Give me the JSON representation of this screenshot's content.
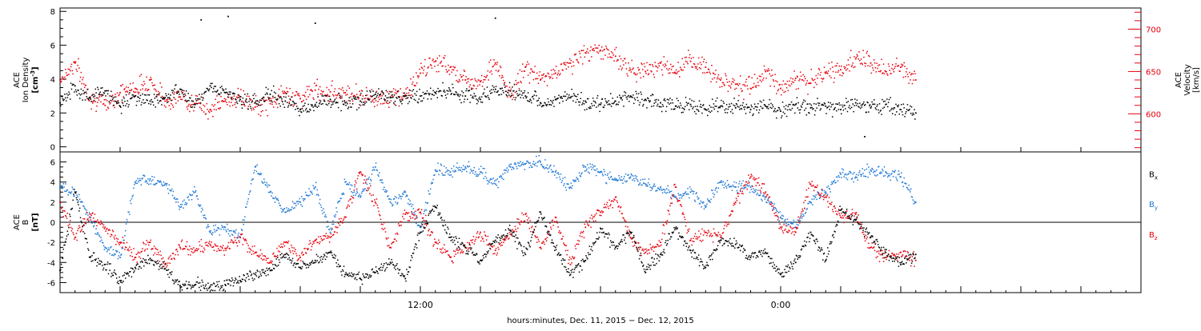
{
  "chart_data": [
    {
      "type": "scatter",
      "panel": "top",
      "ylabel_left": [
        "ACE",
        "Ion Density",
        "[cm",
        "-3",
        "]"
      ],
      "ylabel_right": [
        "ACE",
        "Velocity",
        "[km/s]"
      ],
      "ylim_left": [
        -0.3,
        8.2
      ],
      "yticks_left": [
        0,
        2,
        4,
        6,
        8
      ],
      "ylim_right": [
        555,
        725
      ],
      "yticks_right_labeled": [
        600,
        650,
        700
      ],
      "xlim_hours": [
        0,
        36
      ],
      "data_end_hours": 28.5,
      "grid": false,
      "series": [
        {
          "name": "Ion Density",
          "axis": "left",
          "color": "#000000",
          "x": [
            0,
            0.5,
            1,
            1.5,
            2,
            2.5,
            3,
            3.5,
            4,
            4.5,
            5,
            5.5,
            6,
            6.5,
            7,
            7.5,
            8,
            8.5,
            9,
            9.5,
            10,
            10.5,
            11,
            11.5,
            12,
            12.5,
            13,
            13.5,
            14,
            14.5,
            15,
            15.5,
            16,
            16.5,
            17,
            17.5,
            18,
            18.5,
            19,
            19.5,
            20,
            20.5,
            21,
            21.5,
            22,
            22.5,
            23,
            23.5,
            24,
            24.5,
            25,
            25.5,
            26,
            26.5,
            27,
            27.5,
            28,
            28.5
          ],
          "y": [
            2.6,
            3.6,
            2.9,
            3.3,
            2.4,
            3.0,
            2.7,
            2.9,
            3.4,
            2.5,
            3.6,
            3.2,
            2.8,
            2.6,
            3.1,
            2.7,
            2.2,
            2.5,
            2.8,
            2.6,
            2.7,
            3.1,
            2.9,
            3.0,
            3.0,
            3.2,
            3.3,
            3.0,
            2.8,
            3.4,
            3.3,
            3.0,
            2.6,
            2.8,
            2.9,
            2.7,
            2.5,
            2.7,
            3.0,
            2.8,
            2.6,
            2.4,
            2.5,
            2.2,
            2.4,
            2.3,
            2.2,
            2.4,
            2.1,
            2.5,
            2.3,
            2.4,
            2.2,
            2.6,
            2.3,
            2.5,
            2.2,
            2.0
          ]
        },
        {
          "name": "Velocity",
          "axis": "right",
          "color": "#e8000b",
          "x": [
            0,
            0.5,
            1,
            1.5,
            2,
            2.5,
            3,
            3.5,
            4,
            4.5,
            5,
            5.5,
            6,
            6.5,
            7,
            7.5,
            8,
            8.5,
            9,
            9.5,
            10,
            10.5,
            11,
            11.5,
            12,
            12.5,
            13,
            13.5,
            14,
            14.5,
            15,
            15.5,
            16,
            16.5,
            17,
            17.5,
            18,
            18.5,
            19,
            19.5,
            20,
            20.5,
            21,
            21.5,
            22,
            22.5,
            23,
            23.5,
            24,
            24.5,
            25,
            25.5,
            26,
            26.5,
            27,
            27.5,
            28,
            28.5
          ],
          "y": [
            640,
            660,
            620,
            610,
            625,
            630,
            640,
            615,
            620,
            612,
            605,
            615,
            620,
            608,
            612,
            625,
            618,
            628,
            626,
            625,
            622,
            618,
            620,
            622,
            648,
            662,
            655,
            640,
            638,
            660,
            620,
            655,
            640,
            648,
            660,
            672,
            675,
            668,
            652,
            650,
            660,
            648,
            662,
            655,
            640,
            635,
            630,
            650,
            630,
            642,
            636,
            648,
            652,
            665,
            660,
            650,
            655,
            640
          ]
        }
      ],
      "outliers_black": [
        [
          4.7,
          7.5
        ],
        [
          5.6,
          7.7
        ],
        [
          8.5,
          7.3
        ],
        [
          14.5,
          7.6
        ],
        [
          26.8,
          0.6
        ]
      ]
    },
    {
      "type": "scatter",
      "panel": "bottom",
      "ylabel": [
        "ACE",
        "B",
        "[nT]"
      ],
      "ylim": [
        -7,
        7
      ],
      "yticks": [
        -6,
        -4,
        -2,
        0,
        2,
        4,
        6
      ],
      "zero_line": true,
      "xlim_hours": [
        0,
        36
      ],
      "data_end_hours": 28.5,
      "grid": false,
      "xtick_labels": [
        {
          "hour": 12,
          "label": "12:00"
        },
        {
          "hour": 24,
          "label": "0:00"
        }
      ],
      "xlabel": "hours:minutes, Dec. 11, 2015 − Dec. 12, 2015",
      "legend_placement": "right",
      "series": [
        {
          "name": "Bx",
          "legend_main": "B",
          "legend_sub": "x",
          "color": "#000000",
          "x": [
            0,
            0.5,
            1,
            1.5,
            2,
            2.5,
            3,
            3.5,
            4,
            4.5,
            5,
            5.5,
            6,
            6.5,
            7,
            7.5,
            8,
            8.5,
            9,
            9.5,
            10,
            10.5,
            11,
            11.5,
            12,
            12.5,
            13,
            13.5,
            14,
            14.5,
            15,
            15.5,
            16,
            16.5,
            17,
            17.5,
            18,
            18.5,
            19,
            19.5,
            20,
            20.5,
            21,
            21.5,
            22,
            22.5,
            23,
            23.5,
            24,
            24.5,
            25,
            25.5,
            26,
            26.5,
            27,
            27.5,
            28,
            28.5
          ],
          "y": [
            -4.8,
            3.0,
            -3.5,
            -4.2,
            -5.8,
            -4.5,
            -3.6,
            -4.6,
            -6.3,
            -6.2,
            -6.4,
            -6.2,
            -5.8,
            -5.2,
            -4.8,
            -3.2,
            -4.5,
            -3.8,
            -3.0,
            -5.2,
            -5.6,
            -5.0,
            -4.0,
            -5.6,
            -1.0,
            1.5,
            -1.5,
            -2.5,
            -3.8,
            -1.8,
            -0.8,
            -3.2,
            1.0,
            -2.5,
            -5.2,
            -3.8,
            -0.6,
            -2.5,
            -1.0,
            -5.0,
            -3.2,
            -0.6,
            -2.8,
            -4.5,
            -1.8,
            -2.2,
            -3.5,
            -3.0,
            -5.2,
            -4.0,
            -1.0,
            -3.8,
            1.2,
            0.2,
            -1.5,
            -3.0,
            -4.2,
            -3.2
          ]
        },
        {
          "name": "By",
          "legend_main": "B",
          "legend_sub": "y",
          "color": "#1f77d4",
          "x": [
            0,
            0.5,
            1,
            1.5,
            2,
            2.5,
            3,
            3.5,
            4,
            4.5,
            5,
            5.5,
            6,
            6.5,
            7,
            7.5,
            8,
            8.5,
            9,
            9.5,
            10,
            10.5,
            11,
            11.5,
            12,
            12.5,
            13,
            13.5,
            14,
            14.5,
            15,
            15.5,
            16,
            16.5,
            17,
            17.5,
            18,
            18.5,
            19,
            19.5,
            20,
            20.5,
            21,
            21.5,
            22,
            22.5,
            23,
            23.5,
            24,
            24.5,
            25,
            25.5,
            26,
            26.5,
            27,
            27.5,
            28,
            28.5
          ],
          "y": [
            3.5,
            3.0,
            0.5,
            -2.5,
            -3.5,
            4.0,
            4.3,
            3.8,
            1.5,
            3.0,
            -1.0,
            -0.5,
            -1.5,
            5.5,
            3.0,
            1.0,
            2.0,
            3.5,
            -1.0,
            4.0,
            2.5,
            5.5,
            2.0,
            3.0,
            -0.5,
            5.2,
            5.0,
            5.5,
            5.0,
            3.8,
            5.5,
            5.8,
            6.0,
            5.0,
            3.5,
            5.5,
            5.0,
            4.2,
            4.5,
            3.8,
            3.5,
            2.5,
            3.0,
            1.5,
            4.0,
            3.5,
            3.5,
            2.5,
            0.5,
            -0.5,
            2.0,
            3.0,
            4.8,
            4.5,
            5.2,
            5.0,
            4.5,
            2.0
          ]
        },
        {
          "name": "Bz",
          "legend_main": "B",
          "legend_sub": "z",
          "color": "#e8000b",
          "x": [
            0,
            0.5,
            1,
            1.5,
            2,
            2.5,
            3,
            3.5,
            4,
            4.5,
            5,
            5.5,
            6,
            6.5,
            7,
            7.5,
            8,
            8.5,
            9,
            9.5,
            10,
            10.5,
            11,
            11.5,
            12,
            12.5,
            13,
            13.5,
            14,
            14.5,
            15,
            15.5,
            16,
            16.5,
            17,
            17.5,
            18,
            18.5,
            19,
            19.5,
            20,
            20.5,
            21,
            21.5,
            22,
            22.5,
            23,
            23.5,
            24,
            24.5,
            25,
            25.5,
            26,
            26.5,
            27,
            27.5,
            28,
            28.5
          ],
          "y": [
            2.0,
            -1.5,
            0.8,
            -0.5,
            -2.0,
            -3.5,
            -2.0,
            -4.2,
            -2.5,
            -2.8,
            -2.2,
            -2.6,
            -1.5,
            -3.0,
            -4.0,
            -2.0,
            -3.5,
            -1.8,
            -1.5,
            0.5,
            5.0,
            2.0,
            -2.5,
            0.8,
            1.0,
            -2.0,
            -3.5,
            -2.5,
            -1.0,
            -2.8,
            -1.2,
            0.8,
            -2.5,
            0.5,
            -4.2,
            -0.5,
            1.0,
            2.5,
            -1.5,
            -3.0,
            -2.0,
            3.5,
            -1.8,
            -1.0,
            -1.5,
            2.0,
            4.5,
            3.0,
            -0.5,
            -1.0,
            3.8,
            2.5,
            0.5,
            0.8,
            -2.5,
            -3.5,
            -3.0,
            -3.8
          ]
        }
      ]
    }
  ]
}
